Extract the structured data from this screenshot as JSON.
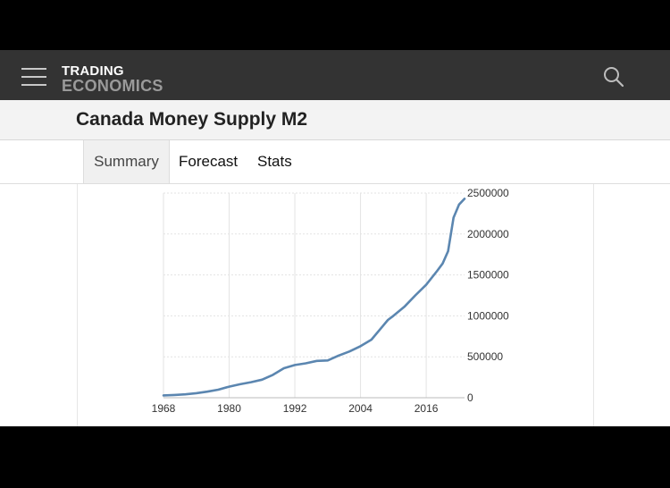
{
  "navbar": {
    "menu_icon": "hamburger-menu-icon",
    "logo_line1": "TRADING",
    "logo_line2": "ECONOMICS",
    "search_icon": "search-icon"
  },
  "page": {
    "title": "Canada Money Supply M2"
  },
  "tabs": [
    {
      "label": "Summary",
      "active": true
    },
    {
      "label": "Forecast",
      "active": false
    },
    {
      "label": "Stats",
      "active": false
    }
  ],
  "colors": {
    "navbar_bg": "#333333",
    "series_line": "#5b86b0"
  },
  "chart_data": {
    "type": "line",
    "title": "",
    "xlabel": "",
    "ylabel": "",
    "xlim": [
      1968,
      2023
    ],
    "ylim": [
      0,
      2500000
    ],
    "x_ticks": [
      "1968",
      "1980",
      "1992",
      "2004",
      "2016"
    ],
    "y_ticks": [
      "2500000",
      "2000000",
      "1500000",
      "1000000",
      "500000",
      "0"
    ],
    "grid": true,
    "legend": "none",
    "series": [
      {
        "x": [
          1968,
          1970,
          1972,
          1974,
          1976,
          1978,
          1980,
          1982,
          1984,
          1986,
          1988,
          1990,
          1992,
          1994,
          1996,
          1998,
          2000,
          2002,
          2004,
          2006,
          2008,
          2009,
          2010,
          2012,
          2014,
          2016,
          2018,
          2019,
          2020,
          2021,
          2022,
          2023
        ],
        "y": [
          28000,
          34000,
          42000,
          56000,
          74000,
          98000,
          135000,
          165000,
          190000,
          220000,
          280000,
          360000,
          400000,
          420000,
          450000,
          455000,
          515000,
          565000,
          630000,
          710000,
          870000,
          950000,
          1000000,
          1110000,
          1250000,
          1380000,
          1550000,
          1640000,
          1790000,
          2200000,
          2360000,
          2430000
        ]
      }
    ]
  }
}
